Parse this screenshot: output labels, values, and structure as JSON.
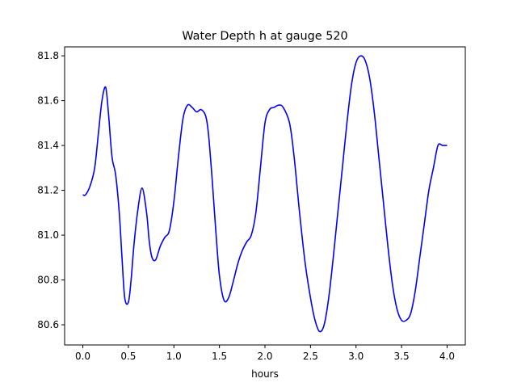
{
  "chart_data": {
    "type": "line",
    "title": "Water Depth h at gauge 520",
    "xlabel": "hours",
    "ylabel": "",
    "xlim": [
      -0.2,
      4.2
    ],
    "ylim": [
      80.51,
      81.84
    ],
    "x_ticks": [
      0.0,
      0.5,
      1.0,
      1.5,
      2.0,
      2.5,
      3.0,
      3.5,
      4.0
    ],
    "x_tick_labels": [
      "0.0",
      "0.5",
      "1.0",
      "1.5",
      "2.0",
      "2.5",
      "3.0",
      "3.5",
      "4.0"
    ],
    "y_ticks": [
      80.6,
      80.8,
      81.0,
      81.2,
      81.4,
      81.6,
      81.8
    ],
    "y_tick_labels": [
      "80.6",
      "80.8",
      "81.0",
      "81.2",
      "81.4",
      "81.6",
      "81.8"
    ],
    "grid": false,
    "legend": "none",
    "series": [
      {
        "color": "#0000ff",
        "x": [
          0.0,
          0.03,
          0.08,
          0.13,
          0.17,
          0.21,
          0.25,
          0.28,
          0.32,
          0.36,
          0.4,
          0.43,
          0.46,
          0.5,
          0.53,
          0.56,
          0.6,
          0.65,
          0.7,
          0.73,
          0.76,
          0.8,
          0.85,
          0.9,
          0.95,
          1.0,
          1.05,
          1.1,
          1.15,
          1.2,
          1.25,
          1.3,
          1.35,
          1.38,
          1.42,
          1.46,
          1.5,
          1.55,
          1.6,
          1.65,
          1.7,
          1.75,
          1.8,
          1.85,
          1.9,
          1.95,
          2.0,
          2.05,
          2.1,
          2.15,
          2.2,
          2.27,
          2.32,
          2.38,
          2.44,
          2.5,
          2.55,
          2.6,
          2.65,
          2.7,
          2.75,
          2.8,
          2.85,
          2.9,
          2.95,
          3.0,
          3.05,
          3.1,
          3.15,
          3.2,
          3.25,
          3.3,
          3.35,
          3.4,
          3.45,
          3.5,
          3.55,
          3.6,
          3.65,
          3.7,
          3.75,
          3.8,
          3.85,
          3.9,
          3.95,
          4.0
        ],
        "y": [
          81.18,
          81.18,
          81.22,
          81.3,
          81.45,
          81.6,
          81.66,
          81.55,
          81.35,
          81.27,
          81.1,
          80.9,
          80.72,
          80.7,
          80.8,
          80.95,
          81.1,
          81.21,
          81.1,
          80.97,
          80.9,
          80.89,
          80.95,
          80.99,
          81.02,
          81.15,
          81.35,
          81.52,
          81.58,
          81.57,
          81.55,
          81.56,
          81.53,
          81.45,
          81.25,
          81.02,
          80.82,
          80.71,
          80.72,
          80.79,
          80.87,
          80.93,
          80.97,
          81.0,
          81.1,
          81.3,
          81.5,
          81.56,
          81.57,
          81.58,
          81.57,
          81.5,
          81.35,
          81.1,
          80.88,
          80.72,
          80.62,
          80.57,
          80.6,
          80.72,
          80.9,
          81.1,
          81.3,
          81.5,
          81.67,
          81.77,
          81.8,
          81.78,
          81.7,
          81.55,
          81.35,
          81.15,
          80.95,
          80.78,
          80.67,
          80.62,
          80.62,
          80.65,
          80.75,
          80.9,
          81.05,
          81.2,
          81.3,
          81.4,
          81.4,
          81.4
        ]
      }
    ]
  }
}
